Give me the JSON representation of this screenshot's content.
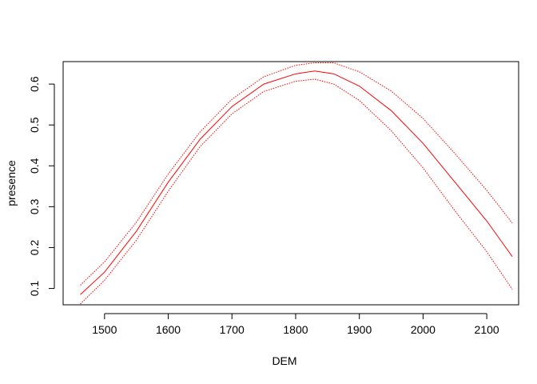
{
  "chart_data": {
    "type": "line",
    "title": "",
    "xlabel": "DEM",
    "ylabel": "presence",
    "xlim": [
      1435,
      2150
    ],
    "ylim": [
      0.06,
      0.655
    ],
    "x_ticks": [
      1500,
      1600,
      1700,
      1800,
      1900,
      2000,
      2100
    ],
    "y_ticks": [
      0.1,
      0.2,
      0.3,
      0.4,
      0.5,
      0.6
    ],
    "x_tick_labels": [
      "1500",
      "1600",
      "1700",
      "1800",
      "1900",
      "2000",
      "2100"
    ],
    "y_tick_labels": [
      "0.1",
      "0.2",
      "0.3",
      "0.4",
      "0.5",
      "0.6"
    ],
    "grid": false,
    "line_color": "#ff0000",
    "x": [
      1462,
      1500,
      1550,
      1600,
      1650,
      1700,
      1750,
      1800,
      1830,
      1860,
      1900,
      1950,
      2000,
      2050,
      2100,
      2140
    ],
    "series": [
      {
        "style": "solid",
        "values": [
          0.085,
          0.14,
          0.24,
          0.36,
          0.465,
          0.545,
          0.6,
          0.625,
          0.632,
          0.625,
          0.595,
          0.535,
          0.455,
          0.36,
          0.265,
          0.178
        ]
      },
      {
        "style": "dotted",
        "values": [
          0.108,
          0.165,
          0.262,
          0.38,
          0.483,
          0.563,
          0.618,
          0.646,
          0.652,
          0.652,
          0.63,
          0.583,
          0.516,
          0.43,
          0.34,
          0.26
        ]
      },
      {
        "style": "dotted",
        "values": [
          0.062,
          0.12,
          0.218,
          0.338,
          0.447,
          0.527,
          0.582,
          0.607,
          0.612,
          0.6,
          0.56,
          0.486,
          0.395,
          0.29,
          0.19,
          0.098
        ]
      }
    ]
  }
}
